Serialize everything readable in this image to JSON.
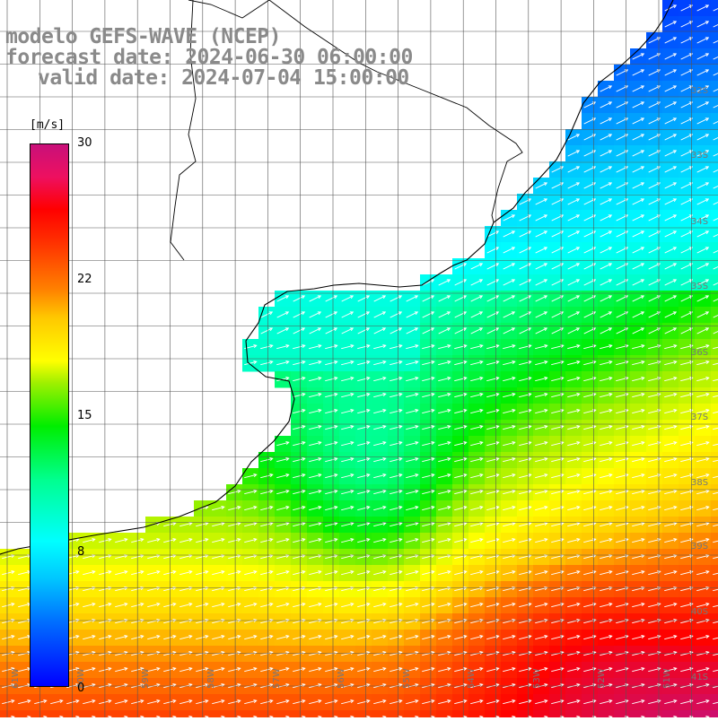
{
  "title": {
    "line1": "modelo GEFS-WAVE (NCEP)",
    "line2": "forecast date: 2024-06-30 06:00:00",
    "line3": "valid date: 2024-07-04 15:00:00"
  },
  "legend": {
    "unit": "[m/s]",
    "ticks": [
      "30",
      "22",
      "15",
      "8",
      "0"
    ],
    "tick_values": [
      30,
      22,
      15,
      8,
      0
    ],
    "range": [
      0,
      30
    ],
    "colors": [
      "#0000ff",
      "#00ffff",
      "#00ee00",
      "#ffff00",
      "#ff8000",
      "#ff0000",
      "#c8107a"
    ]
  },
  "lat_labels": [
    "32S",
    "33S",
    "34S",
    "35S",
    "36S",
    "37S",
    "38S",
    "39S",
    "40S",
    "41S"
  ],
  "lon_labels": [
    "61W",
    "60W",
    "59W",
    "58W",
    "57W",
    "56W",
    "55W",
    "54W",
    "53W",
    "52W",
    "51W"
  ],
  "colors": {
    "land": "#ffffff",
    "coastline": "#000000",
    "gridline": "#555555",
    "arrow": "#ffffff"
  }
}
